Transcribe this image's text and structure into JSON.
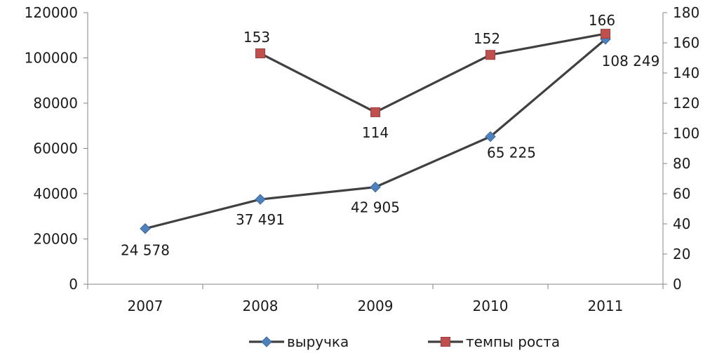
{
  "chart_data": {
    "type": "line",
    "categories": [
      "2007",
      "2008",
      "2009",
      "2010",
      "2011"
    ],
    "y_left": {
      "min": 0,
      "max": 120000,
      "step": 20000,
      "ticks": [
        "0",
        "20000",
        "40000",
        "60000",
        "80000",
        "100000",
        "120000"
      ]
    },
    "y_right": {
      "min": 0,
      "max": 180,
      "step": 20,
      "ticks": [
        "0",
        "20",
        "40",
        "60",
        "80",
        "100",
        "120",
        "140",
        "160",
        "180"
      ]
    },
    "grid": false,
    "legend_position": "bottom",
    "series": [
      {
        "name": "выручка",
        "axis": "left",
        "marker": "diamond",
        "line_color": "#404040",
        "marker_color": "#4f81bd",
        "values": [
          24578,
          37491,
          42905,
          65225,
          108249
        ],
        "labels": [
          "24 578",
          "37 491",
          "42 905",
          "65 225",
          "108 249"
        ]
      },
      {
        "name": "темпы роста",
        "axis": "right",
        "marker": "square",
        "line_color": "#404040",
        "marker_color": "#c0504d",
        "values": [
          null,
          153,
          114,
          152,
          166
        ],
        "labels": [
          "",
          "153",
          "114",
          "152",
          "166"
        ]
      }
    ]
  }
}
